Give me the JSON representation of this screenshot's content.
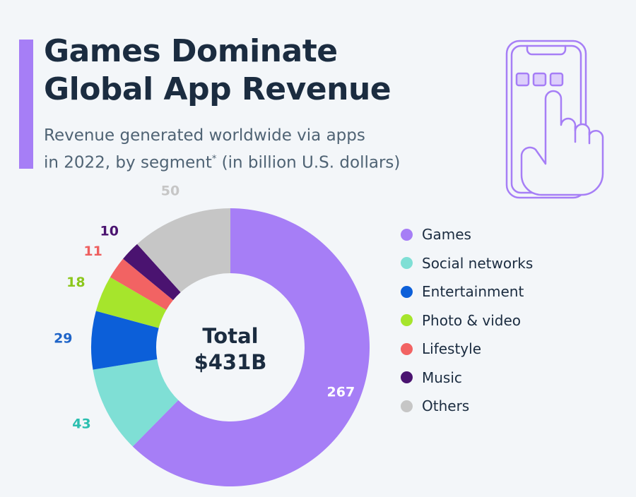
{
  "header": {
    "title_line1": "Games Dominate",
    "title_line2": "Global App Revenue",
    "subtitle_line1": "Revenue generated worldwide via apps",
    "subtitle_line2_pre": "in 2022, by segment",
    "subtitle_footnote_mark": "*",
    "subtitle_line2_post": " (in billion U.S. dollars)"
  },
  "center": {
    "line1": "Total",
    "line2": "$431B"
  },
  "illustration": {
    "icon": "smartphone-tap-icon"
  },
  "colors": {
    "accent": "#a67ef6",
    "title": "#1b2c40",
    "subtitle": "#4f6374",
    "background": "#f3f6f9"
  },
  "chart_data": {
    "type": "pie",
    "variant": "donut",
    "title": "Games Dominate Global App Revenue",
    "subtitle": "Revenue generated worldwide via apps in 2022, by segment* (in billion U.S. dollars)",
    "total_label": "Total $431B",
    "unit": "billion U.S. dollars",
    "legend_position": "right",
    "categories": [
      "Games",
      "Social networks",
      "Entertainment",
      "Photo & video",
      "Lifestyle",
      "Music",
      "Others"
    ],
    "values": [
      267,
      43,
      29,
      18,
      11,
      10,
      50
    ],
    "colors": [
      "#a67ef6",
      "#7fdfd5",
      "#0c5fd9",
      "#a6e52c",
      "#f26363",
      "#4a1370",
      "#c6c6c6"
    ],
    "label_colors": [
      "#ffffff",
      "#2bbfb0",
      "#1e64c8",
      "#8cc71c",
      "#ee5f5f",
      "#4a1370",
      "#c6c6c6"
    ],
    "labels": [
      "267",
      "43",
      "29",
      "18",
      "11",
      "10",
      "50"
    ]
  }
}
